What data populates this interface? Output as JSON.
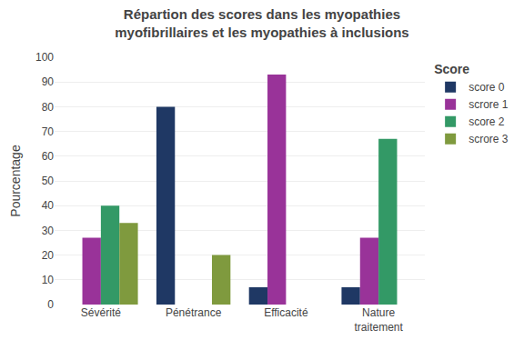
{
  "chart_data": {
    "type": "bar",
    "title": "Répartion des scores dans les myopathies\nmyofibrillaires et les myopathies à inclusions",
    "ylabel": "Pourcentage",
    "categories": [
      "Sévérité",
      "Pénétrance",
      "Efficacité",
      "Nature\ntraitement"
    ],
    "series": [
      {
        "name": "score 0",
        "color": "#1f3864",
        "values": [
          0,
          80,
          7,
          7
        ]
      },
      {
        "name": "scrore 1",
        "color": "#993399",
        "values": [
          27,
          0,
          93,
          27
        ]
      },
      {
        "name": "score 2",
        "color": "#339966",
        "values": [
          40,
          0,
          0,
          67
        ]
      },
      {
        "name": "scrore 3",
        "color": "#7f9a3e",
        "values": [
          33,
          20,
          0,
          0
        ]
      }
    ],
    "legend_title": "Score",
    "legend": "upper right",
    "ylim": [
      0,
      100
    ],
    "yticks": [
      0,
      10,
      20,
      30,
      40,
      50,
      60,
      70,
      80,
      90,
      100
    ],
    "grid": true
  }
}
